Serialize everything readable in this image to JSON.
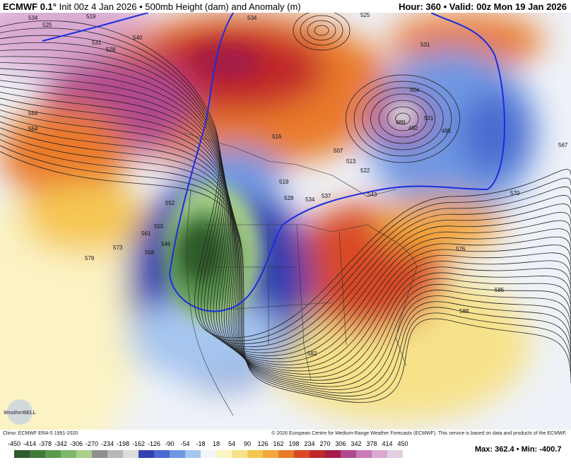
{
  "header": {
    "model": "ECMWF 0.1°",
    "init": "Init 00z 4 Jan 2026 • 500mb Height (dam) and Anomaly (m)",
    "valid": "Hour: 360 • Valid: 00z Mon 19 Jan 2026"
  },
  "map": {
    "logo": "WeatherBELL",
    "contour_labels": [
      519,
      525,
      531,
      534,
      528,
      540,
      534,
      546,
      552,
      555,
      558,
      561,
      564,
      573,
      579,
      585,
      588,
      582,
      576,
      570,
      567,
      543,
      537,
      534,
      528,
      519,
      516,
      507,
      513,
      522,
      504,
      489,
      492,
      501,
      495,
      525,
      531,
      564
    ]
  },
  "footer": {
    "climo": "Climo: ECMWF ERA-5 1991-2020",
    "copyright": "© 2026 European Centre for Medium-Range Weather Forecasts (ECMWF). This service is based on data and products of the ECMWF.",
    "stats": "Max: 362.4 • Min: -400.7"
  },
  "colorbar": {
    "labels": [
      -450,
      -414,
      -378,
      -342,
      -306,
      -270,
      -234,
      -198,
      -162,
      -126,
      -90,
      -54,
      -18,
      18,
      54,
      90,
      126,
      162,
      198,
      234,
      270,
      306,
      342,
      378,
      414,
      450
    ],
    "colors": [
      "#2f5a2c",
      "#3f7a3a",
      "#5a9a4f",
      "#7fb86a",
      "#a9d08b",
      "#8f8f8f",
      "#b8b8b8",
      "#dcdcdc",
      "#3340b0",
      "#4a6ad0",
      "#6f99e3",
      "#a6c6ef",
      "#f2f4f7",
      "#fbf3c4",
      "#f7e28a",
      "#f5c752",
      "#f3a63a",
      "#ea7a2c",
      "#d84a25",
      "#c0282a",
      "#a51d47",
      "#b04a8e",
      "#c97ab8",
      "#d9a9d2",
      "#e3cfe2"
    ]
  }
}
